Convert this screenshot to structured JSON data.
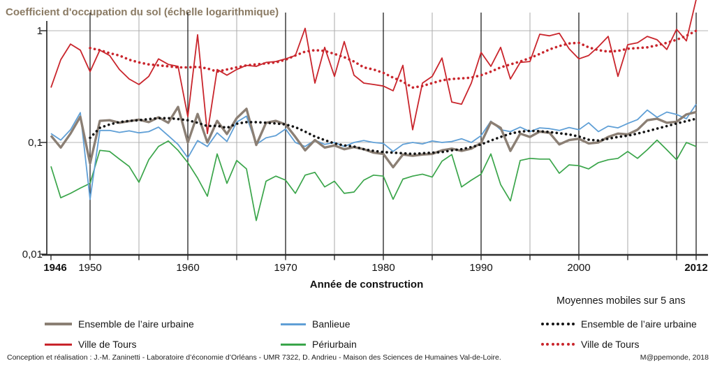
{
  "title": "Coefficient d'occupation du sol (échelle logarithmique)",
  "title_color": "#8a7a63",
  "y_axis": {
    "labels": [
      "1",
      "0,1",
      "0,01"
    ]
  },
  "x_axis_label": "Année de construction",
  "legend": {
    "solid_items": [
      {
        "label": "Ensemble de l’aire urbaine",
        "color": "#8b7f74"
      },
      {
        "label": "Ville de Tours",
        "color": "#c9252c"
      },
      {
        "label": "Banlieue",
        "color": "#5f9fd6"
      },
      {
        "label": "Périurbain",
        "color": "#3aa54a"
      }
    ],
    "moving_avg_title": "Moyennes mobiles sur 5 ans",
    "dotted_items": [
      {
        "label": "Ensemble de l’aire urbaine",
        "color": "#141414"
      },
      {
        "label": "Ville de Tours",
        "color": "#c9252c"
      }
    ]
  },
  "footer": {
    "credit": "Conception et réalisation : J.-M. Zaninetti - Laboratoire d’économie d’Orléans - UMR 7322,  D. Andrieu - Maison des Sciences de Humaines Val-de-Loire.",
    "source": "M@ppemonde, 2018"
  },
  "chart_data": {
    "type": "line",
    "title": "Coefficient d'occupation du sol (échelle logarithmique)",
    "xlabel": "Année de construction",
    "ylabel": "Coefficient d'occupation du sol",
    "y_scale": "log10",
    "ylim": [
      0.01,
      2
    ],
    "x_range": [
      1946,
      2012
    ],
    "grid": true,
    "legend_position": "bottom",
    "y_gridlines": [
      1,
      0.1
    ],
    "y_tick_labels": [
      "1",
      "0,1",
      "0,01"
    ],
    "y_tick_values": [
      1,
      0.1,
      0.01
    ],
    "x_gridlines_major": [
      1950,
      1960,
      1970,
      1980,
      1990,
      2000,
      2010,
      2012
    ],
    "x_gridlines_minor": [
      1955,
      1965,
      1975,
      1985,
      1995,
      2005
    ],
    "x_tick_years": [
      1946,
      1950,
      1960,
      1970,
      1980,
      1990,
      2000,
      2012
    ],
    "x_tick_labels": [
      "1946",
      "1950",
      "1960",
      "1970",
      "1980",
      "1990",
      "2000",
      "2012"
    ],
    "x_tick_bold": [
      "1946",
      "2012"
    ],
    "series": [
      {
        "name": "Périurbain",
        "color": "#3aa54a",
        "style": "solid",
        "width": 1.7,
        "start": 1946,
        "values": [
          0.061,
          0.032,
          0.035,
          0.039,
          0.043,
          0.085,
          0.083,
          0.071,
          0.061,
          0.044,
          0.07,
          0.092,
          0.103,
          0.085,
          0.066,
          0.048,
          0.033,
          0.079,
          0.043,
          0.069,
          0.058,
          0.02,
          0.045,
          0.05,
          0.046,
          0.035,
          0.051,
          0.054,
          0.04,
          0.045,
          0.035,
          0.036,
          0.046,
          0.051,
          0.05,
          0.031,
          0.047,
          0.05,
          0.052,
          0.049,
          0.068,
          0.078,
          0.04,
          0.046,
          0.052,
          0.079,
          0.042,
          0.03,
          0.069,
          0.072,
          0.071,
          0.071,
          0.053,
          0.063,
          0.062,
          0.058,
          0.066,
          0.07,
          0.072,
          0.083,
          0.072,
          0.086,
          0.105,
          0.086,
          0.07,
          0.1,
          0.092
        ]
      },
      {
        "name": "Banlieue",
        "color": "#5f9fd6",
        "style": "solid",
        "width": 1.8,
        "start": 1946,
        "values": [
          0.12,
          0.105,
          0.13,
          0.185,
          0.031,
          0.128,
          0.128,
          0.123,
          0.127,
          0.122,
          0.125,
          0.137,
          0.115,
          0.096,
          0.073,
          0.104,
          0.092,
          0.122,
          0.102,
          0.152,
          0.172,
          0.096,
          0.11,
          0.115,
          0.132,
          0.1,
          0.092,
          0.105,
          0.096,
          0.1,
          0.092,
          0.1,
          0.104,
          0.1,
          0.098,
          0.083,
          0.096,
          0.1,
          0.097,
          0.103,
          0.1,
          0.102,
          0.108,
          0.1,
          0.115,
          0.155,
          0.13,
          0.125,
          0.137,
          0.125,
          0.135,
          0.133,
          0.128,
          0.136,
          0.13,
          0.15,
          0.125,
          0.14,
          0.135,
          0.148,
          0.16,
          0.195,
          0.168,
          0.187,
          0.178,
          0.163,
          0.22
        ]
      },
      {
        "name": "Ensemble de l’aire urbaine",
        "color": "#8b7f74",
        "style": "solid",
        "width": 3.4,
        "start": 1946,
        "values": [
          0.115,
          0.09,
          0.12,
          0.17,
          0.065,
          0.156,
          0.158,
          0.15,
          0.155,
          0.16,
          0.152,
          0.168,
          0.15,
          0.208,
          0.1,
          0.18,
          0.1,
          0.156,
          0.119,
          0.165,
          0.2,
          0.095,
          0.15,
          0.156,
          0.145,
          0.112,
          0.085,
          0.105,
          0.09,
          0.094,
          0.087,
          0.091,
          0.087,
          0.081,
          0.079,
          0.06,
          0.078,
          0.076,
          0.078,
          0.079,
          0.085,
          0.088,
          0.084,
          0.088,
          0.099,
          0.152,
          0.135,
          0.084,
          0.12,
          0.112,
          0.125,
          0.122,
          0.096,
          0.105,
          0.108,
          0.098,
          0.1,
          0.112,
          0.12,
          0.118,
          0.13,
          0.158,
          0.163,
          0.15,
          0.153,
          0.178,
          0.187
        ]
      },
      {
        "name": "Ville de Tours",
        "color": "#c9252c",
        "style": "solid",
        "width": 1.8,
        "start": 1946,
        "values": [
          0.31,
          0.55,
          0.76,
          0.67,
          0.43,
          0.67,
          0.6,
          0.45,
          0.37,
          0.33,
          0.39,
          0.56,
          0.5,
          0.48,
          0.17,
          0.92,
          0.12,
          0.45,
          0.4,
          0.45,
          0.49,
          0.48,
          0.52,
          0.53,
          0.56,
          0.6,
          1.05,
          0.34,
          0.71,
          0.39,
          0.8,
          0.4,
          0.34,
          0.33,
          0.32,
          0.29,
          0.49,
          0.13,
          0.34,
          0.39,
          0.57,
          0.23,
          0.22,
          0.34,
          0.64,
          0.48,
          0.71,
          0.37,
          0.52,
          0.53,
          0.93,
          0.9,
          0.95,
          0.69,
          0.56,
          0.6,
          0.72,
          0.89,
          0.39,
          0.75,
          0.78,
          0.89,
          0.83,
          0.68,
          1.03,
          0.81,
          1.9
        ]
      },
      {
        "name": "Moyenne mobile sur 5 ans - Ensemble de l’aire urbaine",
        "color": "#141414",
        "style": "dotted",
        "width": 3.6,
        "start": 1950,
        "values": [
          0.11,
          0.135,
          0.145,
          0.152,
          0.156,
          0.158,
          0.162,
          0.165,
          0.165,
          0.162,
          0.158,
          0.15,
          0.14,
          0.141,
          0.135,
          0.147,
          0.152,
          0.152,
          0.15,
          0.148,
          0.145,
          0.137,
          0.125,
          0.113,
          0.105,
          0.098,
          0.094,
          0.092,
          0.087,
          0.084,
          0.082,
          0.081,
          0.08,
          0.079,
          0.08,
          0.081,
          0.082,
          0.085,
          0.087,
          0.091,
          0.096,
          0.104,
          0.112,
          0.12,
          0.125,
          0.127,
          0.126,
          0.124,
          0.121,
          0.118,
          0.113,
          0.106,
          0.104,
          0.108,
          0.112,
          0.115,
          0.12,
          0.126,
          0.133,
          0.14,
          0.148,
          0.155,
          0.163
        ]
      },
      {
        "name": "Moyenne mobile sur 5 ans - Ville de Tours",
        "color": "#c9252c",
        "style": "dotted",
        "width": 3.6,
        "start": 1950,
        "values": [
          0.7,
          0.67,
          0.63,
          0.6,
          0.55,
          0.52,
          0.5,
          0.49,
          0.48,
          0.47,
          0.47,
          0.475,
          0.46,
          0.43,
          0.45,
          0.47,
          0.49,
          0.5,
          0.51,
          0.52,
          0.55,
          0.6,
          0.65,
          0.67,
          0.66,
          0.62,
          0.58,
          0.53,
          0.47,
          0.45,
          0.42,
          0.38,
          0.35,
          0.31,
          0.32,
          0.34,
          0.36,
          0.37,
          0.375,
          0.38,
          0.4,
          0.43,
          0.47,
          0.5,
          0.53,
          0.57,
          0.62,
          0.68,
          0.73,
          0.77,
          0.78,
          0.71,
          0.67,
          0.65,
          0.66,
          0.69,
          0.7,
          0.71,
          0.74,
          0.78,
          0.83,
          0.9,
          1.0
        ]
      }
    ]
  }
}
